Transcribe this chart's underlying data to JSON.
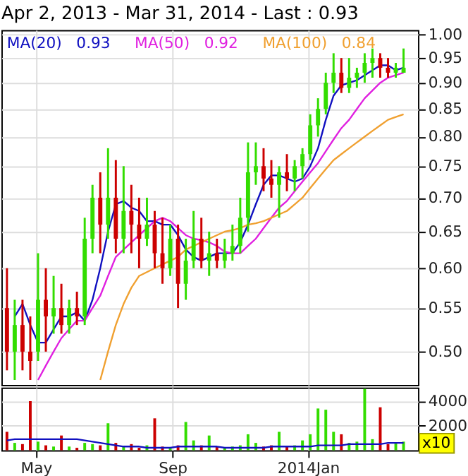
{
  "chart_data": [
    {
      "type": "candlestick",
      "title": "Apr 2, 2013 - Mar 31, 2014 - Last : 0.93",
      "log": true,
      "grid": true,
      "legend": "top left",
      "tick_labels": "y",
      "x": [
        "2013-04-05",
        "2013-04-12",
        "2013-04-19",
        "2013-04-26",
        "2013-05-03",
        "2013-05-10",
        "2013-05-17",
        "2013-05-24",
        "2013-05-31",
        "2013-06-07",
        "2013-06-14",
        "2013-06-21",
        "2013-06-28",
        "2013-07-05",
        "2013-07-12",
        "2013-07-19",
        "2013-07-26",
        "2013-08-02",
        "2013-08-09",
        "2013-08-16",
        "2013-08-23",
        "2013-08-30",
        "2013-09-06",
        "2013-09-13",
        "2013-09-20",
        "2013-09-27",
        "2013-10-04",
        "2013-10-11",
        "2013-10-18",
        "2013-10-25",
        "2013-11-01",
        "2013-11-08",
        "2013-11-15",
        "2013-11-22",
        "2013-11-29",
        "2013-12-06",
        "2013-12-13",
        "2013-12-20",
        "2013-12-27",
        "2014-01-03",
        "2014-01-10",
        "2014-01-17",
        "2014-01-24",
        "2014-01-31",
        "2014-02-07",
        "2014-02-14",
        "2014-02-21",
        "2014-02-28",
        "2014-03-07",
        "2014-03-14",
        "2014-03-21",
        "2014-03-28"
      ],
      "ohlc": [
        [
          0.55,
          0.6,
          0.48,
          0.5
        ],
        [
          0.5,
          0.56,
          0.47,
          0.53
        ],
        [
          0.53,
          0.56,
          0.48,
          0.5
        ],
        [
          0.5,
          0.54,
          0.47,
          0.49
        ],
        [
          0.5,
          0.62,
          0.49,
          0.56
        ],
        [
          0.56,
          0.6,
          0.5,
          0.54
        ],
        [
          0.54,
          0.59,
          0.52,
          0.55
        ],
        [
          0.55,
          0.58,
          0.52,
          0.53
        ],
        [
          0.53,
          0.56,
          0.52,
          0.55
        ],
        [
          0.55,
          0.57,
          0.53,
          0.54
        ],
        [
          0.54,
          0.67,
          0.53,
          0.64
        ],
        [
          0.64,
          0.72,
          0.62,
          0.7
        ],
        [
          0.7,
          0.74,
          0.62,
          0.66
        ],
        [
          0.66,
          0.78,
          0.64,
          0.7
        ],
        [
          0.7,
          0.76,
          0.62,
          0.64
        ],
        [
          0.64,
          0.75,
          0.62,
          0.68
        ],
        [
          0.68,
          0.72,
          0.62,
          0.66
        ],
        [
          0.66,
          0.7,
          0.6,
          0.64
        ],
        [
          0.64,
          0.7,
          0.63,
          0.66
        ],
        [
          0.66,
          0.68,
          0.6,
          0.62
        ],
        [
          0.62,
          0.67,
          0.58,
          0.6
        ],
        [
          0.6,
          0.66,
          0.59,
          0.64
        ],
        [
          0.64,
          0.66,
          0.55,
          0.58
        ],
        [
          0.58,
          0.64,
          0.56,
          0.61
        ],
        [
          0.61,
          0.68,
          0.6,
          0.64
        ],
        [
          0.64,
          0.67,
          0.6,
          0.61
        ],
        [
          0.61,
          0.65,
          0.59,
          0.62
        ],
        [
          0.62,
          0.64,
          0.6,
          0.61
        ],
        [
          0.61,
          0.64,
          0.6,
          0.62
        ],
        [
          0.62,
          0.66,
          0.61,
          0.63
        ],
        [
          0.63,
          0.7,
          0.62,
          0.67
        ],
        [
          0.67,
          0.79,
          0.65,
          0.74
        ],
        [
          0.74,
          0.79,
          0.72,
          0.75
        ],
        [
          0.75,
          0.78,
          0.71,
          0.73
        ],
        [
          0.73,
          0.76,
          0.7,
          0.72
        ],
        [
          0.72,
          0.75,
          0.67,
          0.74
        ],
        [
          0.74,
          0.77,
          0.71,
          0.73
        ],
        [
          0.73,
          0.76,
          0.71,
          0.75
        ],
        [
          0.75,
          0.78,
          0.73,
          0.77
        ],
        [
          0.77,
          0.84,
          0.76,
          0.82
        ],
        [
          0.82,
          0.87,
          0.8,
          0.85
        ],
        [
          0.85,
          0.92,
          0.84,
          0.9
        ],
        [
          0.9,
          0.96,
          0.88,
          0.92
        ],
        [
          0.92,
          0.95,
          0.88,
          0.89
        ],
        [
          0.89,
          0.95,
          0.88,
          0.91
        ],
        [
          0.91,
          0.93,
          0.89,
          0.92
        ],
        [
          0.92,
          0.96,
          0.9,
          0.94
        ],
        [
          0.94,
          0.97,
          0.91,
          0.95
        ],
        [
          0.95,
          0.96,
          0.91,
          0.93
        ],
        [
          0.93,
          0.95,
          0.91,
          0.92
        ],
        [
          0.92,
          0.94,
          0.91,
          0.93
        ],
        [
          0.92,
          0.97,
          0.92,
          0.93
        ]
      ],
      "colors": [
        "#cc0000",
        "#33dd00",
        "#cc0000",
        "#cc0000",
        "#33dd00",
        "#cc0000",
        "#33dd00",
        "#cc0000",
        "#33dd00",
        "#cc0000",
        "#33dd00",
        "#33dd00",
        "#cc0000",
        "#33dd00",
        "#cc0000",
        "#33dd00",
        "#cc0000",
        "#cc0000",
        "#33dd00",
        "#cc0000",
        "#cc0000",
        "#33dd00",
        "#cc0000",
        "#33dd00",
        "#33dd00",
        "#cc0000",
        "#33dd00",
        "#cc0000",
        "#33dd00",
        "#33dd00",
        "#33dd00",
        "#33dd00",
        "#33dd00",
        "#cc0000",
        "#cc0000",
        "#33dd00",
        "#cc0000",
        "#33dd00",
        "#33dd00",
        "#33dd00",
        "#33dd00",
        "#33dd00",
        "#33dd00",
        "#cc0000",
        "#33dd00",
        "#33dd00",
        "#33dd00",
        "#33dd00",
        "#cc0000",
        "#cc0000",
        "#33dd00",
        "#33dd00"
      ],
      "series": [
        {
          "name": "MA(20)",
          "type": "line",
          "color": "#1010c0",
          "values": [
            null,
            0.54,
            0.555,
            0.53,
            0.51,
            0.51,
            0.525,
            0.54,
            0.54,
            0.545,
            0.535,
            0.56,
            0.6,
            0.65,
            0.69,
            0.695,
            0.685,
            0.68,
            0.665,
            0.665,
            0.66,
            0.66,
            0.645,
            0.625,
            0.615,
            0.61,
            0.615,
            0.62,
            0.62,
            0.62,
            0.635,
            0.66,
            0.69,
            0.72,
            0.735,
            0.735,
            0.73,
            0.725,
            0.73,
            0.75,
            0.78,
            0.83,
            0.875,
            0.895,
            0.9,
            0.905,
            0.915,
            0.925,
            0.935,
            0.935,
            0.925,
            0.93
          ]
        },
        {
          "name": "MA(50)",
          "type": "line",
          "color": "#e020e0",
          "values": [
            null,
            null,
            null,
            null,
            0.47,
            0.485,
            0.5,
            0.515,
            0.525,
            0.535,
            0.535,
            0.55,
            0.565,
            0.59,
            0.615,
            0.625,
            0.635,
            0.645,
            0.655,
            0.665,
            0.67,
            0.665,
            0.655,
            0.645,
            0.64,
            0.638,
            0.635,
            0.63,
            0.622,
            0.62,
            0.62,
            0.63,
            0.64,
            0.655,
            0.67,
            0.685,
            0.695,
            0.71,
            0.725,
            0.74,
            0.755,
            0.775,
            0.795,
            0.815,
            0.83,
            0.85,
            0.87,
            0.885,
            0.9,
            0.91,
            0.915,
            0.92
          ]
        },
        {
          "name": "MA(100)",
          "type": "line",
          "color": "#f0a030",
          "values": [
            null,
            null,
            null,
            null,
            null,
            null,
            null,
            null,
            null,
            null,
            null,
            null,
            0.47,
            0.5,
            0.53,
            0.555,
            0.575,
            0.59,
            0.595,
            0.6,
            0.605,
            0.61,
            0.615,
            0.625,
            0.63,
            0.635,
            0.64,
            0.645,
            0.65,
            0.652,
            0.655,
            0.66,
            0.662,
            0.665,
            0.67,
            0.675,
            0.68,
            0.69,
            0.7,
            0.715,
            0.73,
            0.745,
            0.76,
            0.77,
            0.78,
            0.79,
            0.8,
            0.81,
            0.82,
            0.83,
            0.835,
            0.84
          ]
        }
      ],
      "annotations": [
        "0.93",
        "0.92",
        "0.84"
      ],
      "xlim": [
        "2013-03-31",
        "2014-04-10"
      ],
      "xticks": [
        {
          "value": "2013-05-01",
          "label": null
        },
        {
          "value": "2013-09-01",
          "label": null
        },
        {
          "value": "2014-01-01",
          "label": null
        }
      ],
      "ylim": [
        0.465,
        1.01
      ],
      "yticks": [
        {
          "value": 0.5,
          "label": "0.50"
        },
        {
          "value": 0.55,
          "label": "0.55"
        },
        {
          "value": 0.6,
          "label": "0.60"
        },
        {
          "value": 0.65,
          "label": "0.65"
        },
        {
          "value": 0.7,
          "label": "0.70"
        },
        {
          "value": 0.75,
          "label": "0.75"
        },
        {
          "value": 0.8,
          "label": "0.80"
        },
        {
          "value": 0.85,
          "label": "0.85"
        },
        {
          "value": 0.9,
          "label": "0.90"
        },
        {
          "value": 0.95,
          "label": "0.95"
        },
        {
          "value": 1.0,
          "label": "1.00"
        }
      ]
    },
    {
      "type": "bar",
      "grid": true,
      "x": [
        "2013-04-05",
        "2013-04-12",
        "2013-04-19",
        "2013-04-26",
        "2013-05-03",
        "2013-05-10",
        "2013-05-17",
        "2013-05-24",
        "2013-05-31",
        "2013-06-07",
        "2013-06-14",
        "2013-06-21",
        "2013-06-28",
        "2013-07-05",
        "2013-07-12",
        "2013-07-19",
        "2013-07-26",
        "2013-08-02",
        "2013-08-09",
        "2013-08-16",
        "2013-08-23",
        "2013-08-30",
        "2013-09-06",
        "2013-09-13",
        "2013-09-20",
        "2013-09-27",
        "2013-10-04",
        "2013-10-11",
        "2013-10-18",
        "2013-10-25",
        "2013-11-01",
        "2013-11-08",
        "2013-11-15",
        "2013-11-22",
        "2013-11-29",
        "2013-12-06",
        "2013-12-13",
        "2013-12-20",
        "2013-12-27",
        "2014-01-03",
        "2014-01-10",
        "2014-01-17",
        "2014-01-24",
        "2014-01-31",
        "2014-02-07",
        "2014-02-14",
        "2014-02-21",
        "2014-02-28",
        "2014-03-07",
        "2014-03-14",
        "2014-03-21",
        "2014-03-28"
      ],
      "values": [
        1500,
        600,
        500,
        4000,
        700,
        400,
        300,
        1200,
        300,
        200,
        600,
        500,
        400,
        2200,
        600,
        300,
        500,
        200,
        400,
        2600,
        300,
        200,
        400,
        2300,
        800,
        400,
        1200,
        300,
        200,
        300,
        400,
        1300,
        600,
        300,
        400,
        1500,
        300,
        400,
        800,
        1300,
        3400,
        3300,
        1500,
        1300,
        600,
        700,
        5000,
        900,
        3500,
        500,
        600,
        700
      ],
      "colors": [
        "#cc0000",
        "#33dd00",
        "#cc0000",
        "#cc0000",
        "#33dd00",
        "#cc0000",
        "#33dd00",
        "#cc0000",
        "#33dd00",
        "#cc0000",
        "#33dd00",
        "#33dd00",
        "#cc0000",
        "#33dd00",
        "#cc0000",
        "#33dd00",
        "#cc0000",
        "#cc0000",
        "#33dd00",
        "#cc0000",
        "#cc0000",
        "#33dd00",
        "#cc0000",
        "#33dd00",
        "#33dd00",
        "#cc0000",
        "#33dd00",
        "#cc0000",
        "#33dd00",
        "#33dd00",
        "#33dd00",
        "#33dd00",
        "#33dd00",
        "#cc0000",
        "#cc0000",
        "#33dd00",
        "#cc0000",
        "#33dd00",
        "#33dd00",
        "#33dd00",
        "#33dd00",
        "#33dd00",
        "#33dd00",
        "#cc0000",
        "#33dd00",
        "#33dd00",
        "#33dd00",
        "#33dd00",
        "#cc0000",
        "#cc0000",
        "#33dd00",
        "#33dd00"
      ],
      "series": [
        {
          "type": "line",
          "color": "#1010c0",
          "values": [
            800,
            900,
            900,
            900,
            900,
            900,
            900,
            900,
            900,
            900,
            800,
            700,
            600,
            500,
            400,
            300,
            300,
            300,
            200,
            200,
            200,
            200,
            300,
            300,
            300,
            300,
            300,
            300,
            200,
            200,
            200,
            200,
            200,
            200,
            300,
            300,
            300,
            300,
            300,
            300,
            400,
            400,
            400,
            400,
            500,
            500,
            500,
            500,
            500,
            600,
            600,
            600
          ]
        }
      ],
      "annotations": [
        "x10"
      ],
      "xlim": [
        "2013-03-31",
        "2014-04-10"
      ],
      "xticks": [
        {
          "value": "2013-05-01",
          "label": "May"
        },
        {
          "value": "2013-09-01",
          "label": "Sep"
        },
        {
          "value": "2014-01-01",
          "label": "2014Jan"
        }
      ],
      "ylim": [
        0,
        5100
      ],
      "yticks": [
        2000,
        4000
      ]
    }
  ]
}
